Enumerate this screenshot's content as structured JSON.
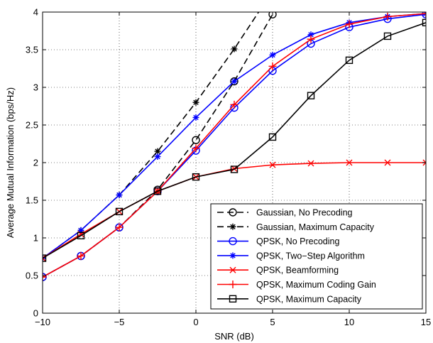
{
  "chart_data": {
    "type": "line",
    "xlabel": "SNR (dB)",
    "ylabel": "Average Mutual Information (bps/Hz)",
    "xlim": [
      -10,
      15
    ],
    "ylim": [
      0,
      4
    ],
    "xticks": [
      -10,
      -5,
      0,
      5,
      10,
      15
    ],
    "xtick_labels": [
      "−10",
      "−5",
      "0",
      "5",
      "10",
      "15"
    ],
    "yticks": [
      0,
      0.5,
      1,
      1.5,
      2,
      2.5,
      3,
      3.5,
      4
    ],
    "ytick_labels": [
      "0",
      "0.5",
      "1",
      "1.5",
      "2",
      "2.5",
      "3",
      "3.5",
      "4"
    ],
    "grid": "dotted",
    "legend_position": "bottom-right",
    "series": [
      {
        "name": "Gaussian, No Precoding",
        "color": "#000000",
        "dash": "dashed",
        "marker": "circle",
        "x": [
          -10,
          -7.5,
          -5,
          -2.5,
          0,
          2.5,
          5
        ],
        "y": [
          0.48,
          0.76,
          1.14,
          1.64,
          2.3,
          3.08,
          3.97
        ]
      },
      {
        "name": "Gaussian, Maximum Capacity",
        "color": "#000000",
        "dash": "dashed",
        "marker": "star",
        "x": [
          -10,
          -7.5,
          -5,
          -2.5,
          0,
          2.5,
          5
        ],
        "y": [
          0.73,
          1.1,
          1.57,
          2.15,
          2.8,
          3.51,
          4.28
        ]
      },
      {
        "name": "QPSK, No Precoding",
        "color": "#0000ff",
        "dash": "solid",
        "marker": "circle",
        "x": [
          -10,
          -7.5,
          -5,
          -2.5,
          0,
          2.5,
          5,
          7.5,
          10,
          12.5,
          15
        ],
        "y": [
          0.48,
          0.76,
          1.14,
          1.62,
          2.16,
          2.73,
          3.22,
          3.58,
          3.8,
          3.91,
          3.97
        ]
      },
      {
        "name": "QPSK, Two−Step Algorithm",
        "color": "#0000ff",
        "dash": "solid",
        "marker": "star",
        "x": [
          -10,
          -7.5,
          -5,
          -2.5,
          0,
          2.5,
          5,
          7.5,
          10,
          12.5,
          15
        ],
        "y": [
          0.73,
          1.1,
          1.57,
          2.08,
          2.6,
          3.08,
          3.43,
          3.7,
          3.86,
          3.94,
          3.98
        ]
      },
      {
        "name": "QPSK, Beamforming",
        "color": "#ff0000",
        "dash": "solid",
        "marker": "x",
        "x": [
          -10,
          -7.5,
          -5,
          -2.5,
          0,
          2.5,
          5,
          7.5,
          10,
          12.5,
          15
        ],
        "y": [
          0.73,
          1.05,
          1.35,
          1.62,
          1.81,
          1.92,
          1.97,
          1.99,
          2.0,
          2.0,
          2.0
        ]
      },
      {
        "name": "QPSK, Maximum Coding Gain",
        "color": "#ff0000",
        "dash": "solid",
        "marker": "plus",
        "x": [
          -10,
          -7.5,
          -5,
          -2.5,
          0,
          2.5,
          5,
          7.5,
          10,
          12.5,
          15
        ],
        "y": [
          0.48,
          0.76,
          1.14,
          1.62,
          2.19,
          2.77,
          3.28,
          3.64,
          3.84,
          3.94,
          3.98
        ]
      },
      {
        "name": "QPSK, Maximum Capacity",
        "color": "#000000",
        "dash": "solid",
        "marker": "square",
        "x": [
          -10,
          -7.5,
          -5,
          -2.5,
          0,
          2.5,
          5,
          7.5,
          10,
          12.5,
          15
        ],
        "y": [
          0.73,
          1.03,
          1.35,
          1.62,
          1.81,
          1.91,
          2.34,
          2.89,
          3.36,
          3.68,
          3.86
        ]
      }
    ]
  }
}
